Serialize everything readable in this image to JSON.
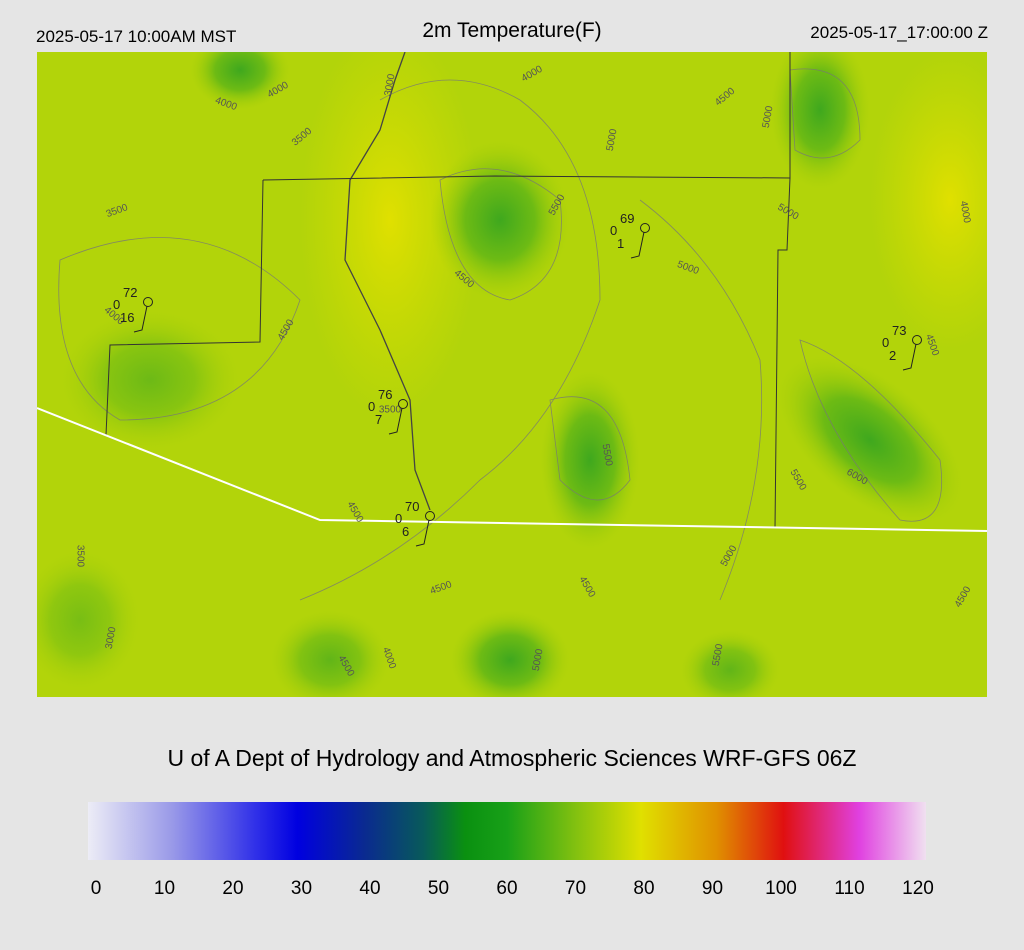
{
  "header": {
    "left": "2025-05-17 10:00AM MST",
    "title": "2m Temperature(F)",
    "right": "2025-05-17_17:00:00 Z"
  },
  "stations": [
    {
      "temp": "72",
      "mid": "0",
      "low": "16"
    },
    {
      "temp": "69",
      "mid": "0",
      "low": "1"
    },
    {
      "temp": "73",
      "mid": "0",
      "low": "2"
    },
    {
      "temp": "76",
      "mid": "0",
      "low": "7"
    },
    {
      "temp": "70",
      "mid": "0",
      "low": "6"
    }
  ],
  "contour_labels": [
    "4000",
    "4000",
    "3000",
    "3500",
    "3500",
    "4000",
    "4500",
    "5000",
    "5000",
    "5500",
    "5000",
    "5000",
    "4000",
    "4500",
    "4500",
    "4500",
    "4000",
    "3500",
    "5500",
    "6000",
    "5500",
    "4500",
    "3500",
    "5000",
    "4500",
    "4500",
    "4500",
    "3000",
    "4000",
    "5000",
    "4500",
    "5500"
  ],
  "credit": "U of A Dept of Hydrology and Atmospheric Sciences WRF-GFS 06Z",
  "colorbar": {
    "ticks": [
      0,
      10,
      20,
      30,
      40,
      50,
      60,
      70,
      80,
      90,
      100,
      110,
      120
    ]
  }
}
